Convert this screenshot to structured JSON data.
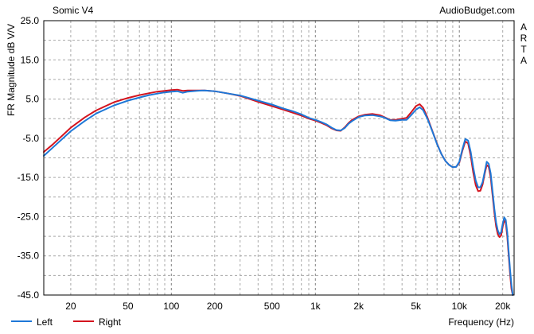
{
  "chart_data": {
    "type": "line",
    "title": "Somic V4",
    "source_label": "AudioBudget.com",
    "watermark": "ARTA",
    "xlabel": "Frequency (Hz)",
    "ylabel": "FR Magnitude dB V/V",
    "x_scale": "log",
    "xlim": [
      13,
      24000
    ],
    "ylim": [
      -45,
      25
    ],
    "x_ticks": [
      20,
      50,
      100,
      200,
      500,
      1000,
      2000,
      5000,
      10000,
      20000
    ],
    "x_tick_labels": [
      "20",
      "50",
      "100",
      "200",
      "500",
      "1k",
      "2k",
      "5k",
      "10k",
      "20k"
    ],
    "y_ticks": [
      25,
      15,
      5,
      -5,
      -15,
      -25,
      -35,
      -45
    ],
    "y_tick_labels": [
      "25.0",
      "15.0",
      "5.0",
      "-5.0",
      "-15.0",
      "-25.0",
      "-35.0",
      "-45.0"
    ],
    "grid": true,
    "legend_position": "bottom-left",
    "series": [
      {
        "name": "Left",
        "color": "#1e78d7",
        "points": [
          [
            13,
            -9.5
          ],
          [
            15,
            -7.4
          ],
          [
            20,
            -3.2
          ],
          [
            25,
            -0.6
          ],
          [
            30,
            1.3
          ],
          [
            40,
            3.4
          ],
          [
            50,
            4.6
          ],
          [
            60,
            5.4
          ],
          [
            70,
            6.0
          ],
          [
            80,
            6.4
          ],
          [
            90,
            6.7
          ],
          [
            100,
            6.9
          ],
          [
            110,
            7.0
          ],
          [
            120,
            6.6
          ],
          [
            130,
            6.9
          ],
          [
            150,
            7.1
          ],
          [
            170,
            7.2
          ],
          [
            200,
            7.0
          ],
          [
            250,
            6.4
          ],
          [
            300,
            5.9
          ],
          [
            400,
            4.6
          ],
          [
            500,
            3.6
          ],
          [
            600,
            2.6
          ],
          [
            700,
            1.9
          ],
          [
            800,
            1.1
          ],
          [
            900,
            0.2
          ],
          [
            1000,
            -0.3
          ],
          [
            1100,
            -0.9
          ],
          [
            1200,
            -1.5
          ],
          [
            1300,
            -2.3
          ],
          [
            1400,
            -2.9
          ],
          [
            1500,
            -3.0
          ],
          [
            1600,
            -2.4
          ],
          [
            1700,
            -1.3
          ],
          [
            1800,
            -0.6
          ],
          [
            2000,
            0.4
          ],
          [
            2200,
            0.8
          ],
          [
            2500,
            0.9
          ],
          [
            2800,
            0.6
          ],
          [
            3000,
            0.3
          ],
          [
            3300,
            -0.4
          ],
          [
            3600,
            -0.5
          ],
          [
            4000,
            -0.3
          ],
          [
            4300,
            -0.3
          ],
          [
            4600,
            0.8
          ],
          [
            5000,
            2.3
          ],
          [
            5300,
            2.9
          ],
          [
            5600,
            2.2
          ],
          [
            6000,
            0.0
          ],
          [
            6500,
            -3.3
          ],
          [
            7000,
            -6.5
          ],
          [
            7500,
            -9.0
          ],
          [
            8000,
            -10.8
          ],
          [
            8500,
            -11.8
          ],
          [
            9000,
            -12.4
          ],
          [
            9500,
            -12.3
          ],
          [
            10000,
            -11.0
          ],
          [
            10500,
            -7.8
          ],
          [
            11000,
            -5.2
          ],
          [
            11500,
            -5.6
          ],
          [
            12000,
            -8.5
          ],
          [
            12500,
            -12.5
          ],
          [
            13000,
            -15.8
          ],
          [
            13500,
            -17.5
          ],
          [
            14000,
            -17.5
          ],
          [
            14500,
            -16.2
          ],
          [
            15000,
            -13.5
          ],
          [
            15500,
            -11.0
          ],
          [
            16000,
            -11.5
          ],
          [
            16500,
            -14.0
          ],
          [
            17000,
            -18.5
          ],
          [
            17500,
            -23.0
          ],
          [
            18000,
            -26.5
          ],
          [
            18500,
            -28.5
          ],
          [
            19000,
            -29.5
          ],
          [
            19500,
            -29.0
          ],
          [
            20000,
            -26.8
          ],
          [
            20500,
            -25.2
          ],
          [
            21000,
            -25.8
          ],
          [
            21500,
            -29.0
          ],
          [
            22000,
            -34.0
          ],
          [
            22500,
            -38.5
          ],
          [
            23000,
            -42.5
          ],
          [
            23500,
            -46.0
          ]
        ]
      },
      {
        "name": "Right",
        "color": "#d4141e",
        "points": [
          [
            13,
            -8.5
          ],
          [
            15,
            -6.6
          ],
          [
            20,
            -2.3
          ],
          [
            25,
            0.3
          ],
          [
            30,
            2.1
          ],
          [
            40,
            4.2
          ],
          [
            50,
            5.3
          ],
          [
            60,
            6.0
          ],
          [
            70,
            6.5
          ],
          [
            80,
            6.9
          ],
          [
            90,
            7.1
          ],
          [
            100,
            7.3
          ],
          [
            110,
            7.4
          ],
          [
            120,
            7.1
          ],
          [
            130,
            7.2
          ],
          [
            150,
            7.2
          ],
          [
            170,
            7.2
          ],
          [
            200,
            7.0
          ],
          [
            250,
            6.4
          ],
          [
            300,
            5.8
          ],
          [
            400,
            4.3
          ],
          [
            500,
            3.2
          ],
          [
            600,
            2.3
          ],
          [
            700,
            1.5
          ],
          [
            800,
            0.8
          ],
          [
            900,
            0.0
          ],
          [
            1000,
            -0.5
          ],
          [
            1100,
            -1.1
          ],
          [
            1200,
            -1.7
          ],
          [
            1300,
            -2.5
          ],
          [
            1400,
            -3.0
          ],
          [
            1500,
            -3.1
          ],
          [
            1600,
            -2.2
          ],
          [
            1700,
            -1.1
          ],
          [
            1800,
            -0.3
          ],
          [
            2000,
            0.6
          ],
          [
            2200,
            1.0
          ],
          [
            2500,
            1.2
          ],
          [
            2800,
            0.9
          ],
          [
            3000,
            0.4
          ],
          [
            3300,
            -0.3
          ],
          [
            3600,
            -0.3
          ],
          [
            4000,
            0.0
          ],
          [
            4300,
            0.2
          ],
          [
            4600,
            1.5
          ],
          [
            5000,
            3.2
          ],
          [
            5300,
            3.7
          ],
          [
            5600,
            2.8
          ],
          [
            6000,
            0.3
          ],
          [
            6500,
            -3.2
          ],
          [
            7000,
            -6.4
          ],
          [
            7500,
            -9.0
          ],
          [
            8000,
            -10.8
          ],
          [
            8500,
            -11.8
          ],
          [
            9000,
            -12.4
          ],
          [
            9500,
            -12.3
          ],
          [
            10000,
            -11.2
          ],
          [
            10500,
            -8.2
          ],
          [
            11000,
            -5.8
          ],
          [
            11500,
            -6.3
          ],
          [
            12000,
            -9.5
          ],
          [
            12500,
            -13.8
          ],
          [
            13000,
            -17.0
          ],
          [
            13500,
            -18.5
          ],
          [
            14000,
            -18.4
          ],
          [
            14500,
            -16.8
          ],
          [
            15000,
            -14.0
          ],
          [
            15500,
            -11.8
          ],
          [
            16000,
            -12.3
          ],
          [
            16500,
            -15.0
          ],
          [
            17000,
            -19.5
          ],
          [
            17500,
            -24.0
          ],
          [
            18000,
            -27.5
          ],
          [
            18500,
            -29.5
          ],
          [
            19000,
            -30.2
          ],
          [
            19500,
            -29.8
          ],
          [
            20000,
            -27.5
          ],
          [
            20500,
            -26.0
          ],
          [
            21000,
            -26.5
          ],
          [
            21500,
            -30.0
          ],
          [
            22000,
            -35.0
          ],
          [
            22500,
            -39.5
          ],
          [
            23000,
            -43.5
          ],
          [
            23500,
            -46.5
          ]
        ]
      }
    ]
  }
}
